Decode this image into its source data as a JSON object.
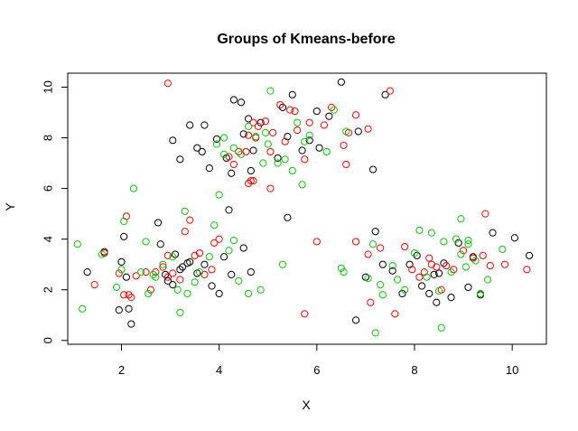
{
  "chart_data": {
    "type": "scatter",
    "title": "Groups of Kmeans-before",
    "xlabel": "X",
    "ylabel": "Y",
    "xlim": [
      0.9,
      10.7
    ],
    "ylim": [
      -0.15,
      10.55
    ],
    "xticks": [
      2,
      4,
      6,
      8,
      10
    ],
    "yticks": [
      0,
      2,
      4,
      6,
      8,
      10
    ],
    "grid": false,
    "legend": "none",
    "marker": "open-circle",
    "series": [
      {
        "color": "#000000",
        "points": [
          [
            1.3,
            2.7
          ],
          [
            1.65,
            3.5
          ],
          [
            1.95,
            1.2
          ],
          [
            2.0,
            3.1
          ],
          [
            2.05,
            4.1
          ],
          [
            2.1,
            2.5
          ],
          [
            2.15,
            1.25
          ],
          [
            2.2,
            0.65
          ],
          [
            2.75,
            4.65
          ],
          [
            2.8,
            3.8
          ],
          [
            2.9,
            2.6
          ],
          [
            3.05,
            2.2
          ],
          [
            3.1,
            3.4
          ],
          [
            3.2,
            2.8
          ],
          [
            3.25,
            2.9
          ],
          [
            3.4,
            3.1
          ],
          [
            3.55,
            2.65
          ],
          [
            3.7,
            3.0
          ],
          [
            3.85,
            2.15
          ],
          [
            4.0,
            1.85
          ],
          [
            4.1,
            3.3
          ],
          [
            4.25,
            2.6
          ],
          [
            4.5,
            3.65
          ],
          [
            4.65,
            2.7
          ],
          [
            3.35,
            3.05
          ],
          [
            2.95,
            2.35
          ],
          [
            3.05,
            7.9
          ],
          [
            3.2,
            7.15
          ],
          [
            3.4,
            8.5
          ],
          [
            3.55,
            7.6
          ],
          [
            3.65,
            7.45
          ],
          [
            3.7,
            8.5
          ],
          [
            3.8,
            6.8
          ],
          [
            3.95,
            7.95
          ],
          [
            4.15,
            7.2
          ],
          [
            4.3,
            9.5
          ],
          [
            4.45,
            9.4
          ],
          [
            4.5,
            8.15
          ],
          [
            4.6,
            8.75
          ],
          [
            4.7,
            7.5
          ],
          [
            4.85,
            8.6
          ],
          [
            5.2,
            7.2
          ],
          [
            5.3,
            9.2
          ],
          [
            5.4,
            8.05
          ],
          [
            5.5,
            9.7
          ],
          [
            5.7,
            7.5
          ],
          [
            5.85,
            7.9
          ],
          [
            6.0,
            9.05
          ],
          [
            6.05,
            7.6
          ],
          [
            6.25,
            8.85
          ],
          [
            6.5,
            10.2
          ],
          [
            6.85,
            8.25
          ],
          [
            4.2,
            5.15
          ],
          [
            5.4,
            4.85
          ],
          [
            4.65,
            6.7
          ],
          [
            7.15,
            6.75
          ],
          [
            7.4,
            9.7
          ],
          [
            4.25,
            6.6
          ],
          [
            6.8,
            0.8
          ],
          [
            7.0,
            2.5
          ],
          [
            7.2,
            4.3
          ],
          [
            7.35,
            3.0
          ],
          [
            7.55,
            2.75
          ],
          [
            7.75,
            1.85
          ],
          [
            7.9,
            3.0
          ],
          [
            8.05,
            3.35
          ],
          [
            8.15,
            2.15
          ],
          [
            8.3,
            1.85
          ],
          [
            8.45,
            1.5
          ],
          [
            8.5,
            2.65
          ],
          [
            8.6,
            3.05
          ],
          [
            8.75,
            1.7
          ],
          [
            8.9,
            3.85
          ],
          [
            9.1,
            2.1
          ],
          [
            9.2,
            3.3
          ],
          [
            9.35,
            1.8
          ],
          [
            9.6,
            4.25
          ],
          [
            10.05,
            4.05
          ],
          [
            10.35,
            3.35
          ],
          [
            8.4,
            2.6
          ]
        ]
      },
      {
        "color": "#ff0000",
        "points": [
          [
            1.45,
            2.2
          ],
          [
            1.65,
            3.45
          ],
          [
            1.95,
            2.65
          ],
          [
            2.05,
            1.8
          ],
          [
            2.1,
            4.9
          ],
          [
            2.15,
            1.8
          ],
          [
            2.2,
            1.7
          ],
          [
            2.3,
            2.55
          ],
          [
            2.5,
            2.7
          ],
          [
            2.6,
            2.0
          ],
          [
            2.7,
            2.7
          ],
          [
            2.85,
            2.9
          ],
          [
            2.95,
            3.35
          ],
          [
            3.05,
            2.65
          ],
          [
            3.2,
            2.4
          ],
          [
            3.3,
            4.3
          ],
          [
            3.4,
            4.75
          ],
          [
            3.5,
            3.35
          ],
          [
            3.6,
            3.45
          ],
          [
            3.7,
            2.6
          ],
          [
            3.85,
            2.8
          ],
          [
            3.9,
            3.85
          ],
          [
            4.0,
            4.0
          ],
          [
            2.95,
            10.15
          ],
          [
            2.95,
            2.5
          ],
          [
            4.2,
            7.25
          ],
          [
            4.3,
            6.95
          ],
          [
            4.4,
            7.45
          ],
          [
            4.55,
            7.45
          ],
          [
            4.6,
            8.1
          ],
          [
            4.7,
            8.6
          ],
          [
            4.75,
            8.0
          ],
          [
            4.8,
            8.45
          ],
          [
            4.95,
            8.65
          ],
          [
            5.05,
            7.45
          ],
          [
            5.1,
            8.2
          ],
          [
            5.25,
            9.3
          ],
          [
            5.35,
            7.85
          ],
          [
            5.45,
            9.1
          ],
          [
            5.55,
            9.05
          ],
          [
            5.6,
            8.3
          ],
          [
            5.75,
            7.15
          ],
          [
            5.85,
            8.6
          ],
          [
            6.0,
            3.9
          ],
          [
            6.15,
            8.5
          ],
          [
            6.3,
            9.2
          ],
          [
            6.55,
            7.7
          ],
          [
            6.65,
            8.2
          ],
          [
            6.8,
            8.9
          ],
          [
            7.05,
            8.35
          ],
          [
            7.5,
            9.85
          ],
          [
            4.6,
            6.2
          ],
          [
            4.7,
            6.3
          ],
          [
            5.05,
            6.0
          ],
          [
            5.75,
            1.05
          ],
          [
            6.6,
            6.95
          ],
          [
            4.65,
            6.3
          ],
          [
            6.8,
            3.9
          ],
          [
            7.05,
            3.4
          ],
          [
            7.1,
            1.5
          ],
          [
            7.3,
            3.65
          ],
          [
            7.6,
            1.05
          ],
          [
            7.8,
            3.7
          ],
          [
            7.95,
            2.8
          ],
          [
            8.1,
            2.5
          ],
          [
            8.2,
            2.7
          ],
          [
            8.3,
            3.25
          ],
          [
            8.45,
            2.9
          ],
          [
            8.55,
            2.0
          ],
          [
            8.65,
            2.95
          ],
          [
            8.8,
            2.8
          ],
          [
            9.0,
            3.55
          ],
          [
            9.2,
            3.25
          ],
          [
            9.4,
            3.35
          ],
          [
            9.45,
            5.0
          ],
          [
            9.55,
            2.95
          ],
          [
            9.85,
            3.0
          ],
          [
            10.3,
            2.8
          ],
          [
            8.35,
            3.0
          ]
        ]
      },
      {
        "color": "#00cc00",
        "points": [
          [
            1.1,
            3.8
          ],
          [
            1.2,
            1.25
          ],
          [
            1.6,
            3.4
          ],
          [
            1.9,
            2.1
          ],
          [
            2.0,
            2.8
          ],
          [
            2.05,
            4.7
          ],
          [
            2.25,
            6.0
          ],
          [
            2.4,
            2.7
          ],
          [
            2.5,
            3.9
          ],
          [
            2.55,
            1.85
          ],
          [
            2.7,
            2.5
          ],
          [
            2.85,
            3.0
          ],
          [
            3.05,
            3.3
          ],
          [
            3.15,
            2.0
          ],
          [
            3.2,
            1.1
          ],
          [
            3.3,
            5.1
          ],
          [
            3.35,
            1.85
          ],
          [
            3.5,
            2.3
          ],
          [
            3.6,
            2.7
          ],
          [
            3.8,
            3.3
          ],
          [
            3.9,
            4.55
          ],
          [
            4.0,
            5.75
          ],
          [
            4.2,
            3.55
          ],
          [
            4.4,
            2.35
          ],
          [
            4.6,
            1.85
          ],
          [
            4.85,
            2.0
          ],
          [
            4.3,
            3.95
          ],
          [
            2.65,
            2.6
          ],
          [
            3.95,
            7.75
          ],
          [
            4.1,
            7.35
          ],
          [
            4.3,
            7.6
          ],
          [
            4.45,
            7.35
          ],
          [
            4.6,
            8.45
          ],
          [
            4.75,
            8.05
          ],
          [
            4.9,
            7.0
          ],
          [
            5.0,
            7.75
          ],
          [
            5.05,
            9.85
          ],
          [
            5.2,
            7.0
          ],
          [
            5.35,
            7.15
          ],
          [
            5.5,
            6.7
          ],
          [
            5.6,
            8.6
          ],
          [
            5.7,
            6.15
          ],
          [
            5.75,
            7.85
          ],
          [
            5.85,
            8.1
          ],
          [
            6.2,
            7.45
          ],
          [
            6.35,
            9.1
          ],
          [
            6.6,
            8.25
          ],
          [
            5.3,
            3.0
          ],
          [
            4.95,
            8.2
          ],
          [
            4.1,
            8.0
          ],
          [
            6.5,
            2.85
          ],
          [
            6.55,
            2.7
          ],
          [
            7.05,
            2.45
          ],
          [
            7.15,
            3.8
          ],
          [
            7.3,
            2.2
          ],
          [
            7.35,
            1.8
          ],
          [
            7.55,
            2.95
          ],
          [
            7.65,
            2.4
          ],
          [
            7.8,
            2.0
          ],
          [
            8.0,
            3.45
          ],
          [
            8.1,
            4.35
          ],
          [
            8.25,
            2.5
          ],
          [
            8.35,
            4.25
          ],
          [
            8.5,
            1.95
          ],
          [
            8.55,
            0.5
          ],
          [
            8.6,
            3.9
          ],
          [
            8.75,
            2.7
          ],
          [
            8.85,
            4.0
          ],
          [
            8.95,
            3.4
          ],
          [
            9.05,
            2.9
          ],
          [
            9.1,
            3.8
          ],
          [
            9.25,
            3.15
          ],
          [
            9.35,
            1.85
          ],
          [
            9.5,
            2.4
          ],
          [
            9.8,
            3.6
          ],
          [
            8.95,
            4.8
          ],
          [
            9.1,
            3.95
          ],
          [
            7.2,
            0.3
          ]
        ]
      }
    ]
  }
}
